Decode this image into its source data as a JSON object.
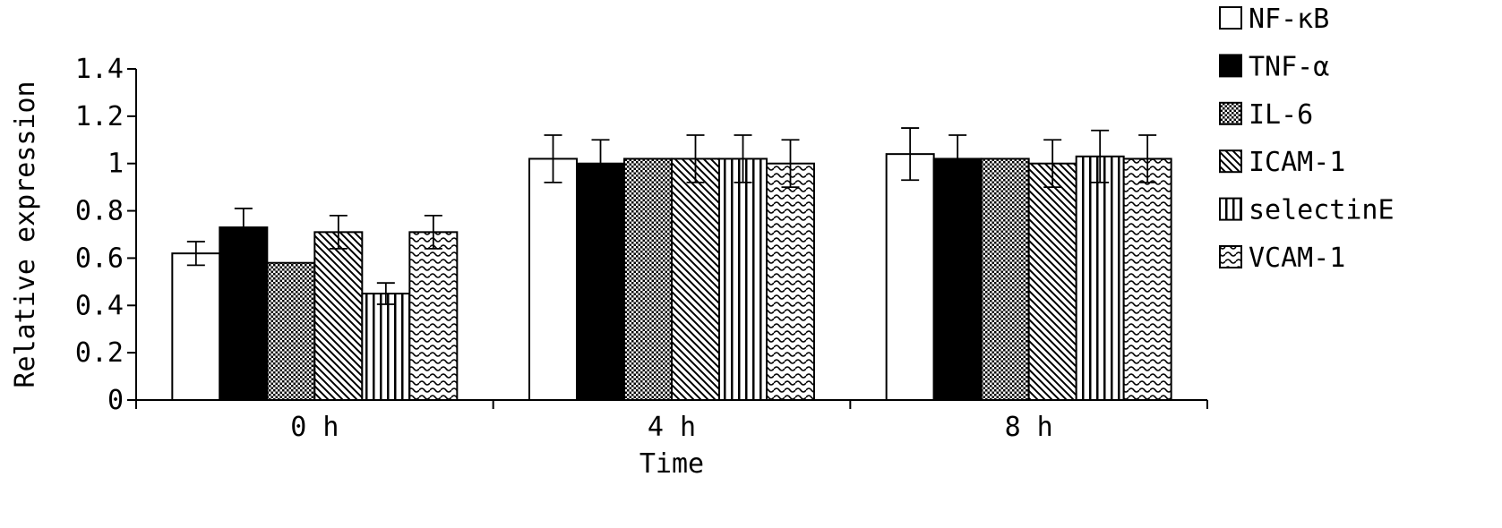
{
  "chart_data": {
    "type": "bar",
    "title": "",
    "xlabel": "Time",
    "ylabel": "Relative expression",
    "categories": [
      "0 h",
      "4 h",
      "8 h"
    ],
    "ylim": [
      0,
      1.4
    ],
    "yticks": [
      0,
      0.2,
      0.4,
      0.6,
      0.8,
      1,
      1.2,
      1.4
    ],
    "ytick_labels": [
      "0",
      "0.2",
      "0.4",
      "0.6",
      "0.8",
      "1",
      "1.2",
      "1.4"
    ],
    "legend_position": "right",
    "grid": false,
    "series": [
      {
        "name": "NF-κB",
        "pattern": "white",
        "values": [
          0.62,
          1.02,
          1.04
        ],
        "errors": [
          0.05,
          0.1,
          0.11
        ]
      },
      {
        "name": "TNF-α",
        "pattern": "black",
        "values": [
          0.73,
          1.0,
          1.02
        ],
        "errors": [
          0.08,
          0.1,
          0.1
        ]
      },
      {
        "name": "IL-6",
        "pattern": "dots",
        "values": [
          0.58,
          1.02,
          1.02
        ],
        "errors": [
          null,
          null,
          null
        ]
      },
      {
        "name": "ICAM-1",
        "pattern": "diagonal",
        "values": [
          0.71,
          1.02,
          1.0
        ],
        "errors": [
          0.07,
          0.1,
          0.1
        ]
      },
      {
        "name": "selectinE",
        "pattern": "vertical",
        "values": [
          0.45,
          1.02,
          1.03
        ],
        "errors": [
          0.045,
          0.1,
          0.11
        ]
      },
      {
        "name": "VCAM-1",
        "pattern": "wavy",
        "values": [
          0.71,
          1.0,
          1.02
        ],
        "errors": [
          0.07,
          0.1,
          0.1
        ]
      }
    ]
  }
}
